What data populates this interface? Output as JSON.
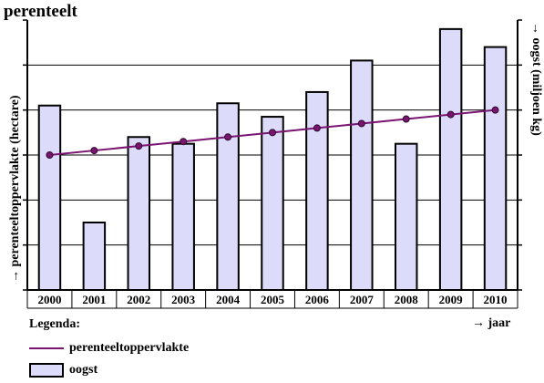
{
  "chart_data": {
    "type": "bar",
    "title": "perenteelt",
    "categories": [
      "2000",
      "2001",
      "2002",
      "2003",
      "2004",
      "2005",
      "2006",
      "2007",
      "2008",
      "2009",
      "2010"
    ],
    "series": [
      {
        "name": "oogst",
        "type": "bar",
        "values": [
          4.1,
          1.5,
          3.4,
          3.25,
          4.15,
          3.85,
          4.4,
          5.1,
          3.25,
          5.8,
          5.4
        ],
        "color": "#dcdcfa"
      },
      {
        "name": "perenteeltoppervlakte",
        "type": "line",
        "values": [
          3.0,
          3.1,
          3.2,
          3.3,
          3.4,
          3.5,
          3.6,
          3.7,
          3.8,
          3.9,
          4.0
        ],
        "color": "#7a1470"
      }
    ],
    "ylabel_left": "→ perenteeltoppervlakte (hectare)",
    "ylabel_right": "→ oogst (miljoen kg)",
    "xlabel": "→ jaar",
    "ylim": [
      0,
      6
    ],
    "gridlines": true,
    "legend": {
      "title": "Legenda:",
      "placement": "bottom-left"
    }
  }
}
